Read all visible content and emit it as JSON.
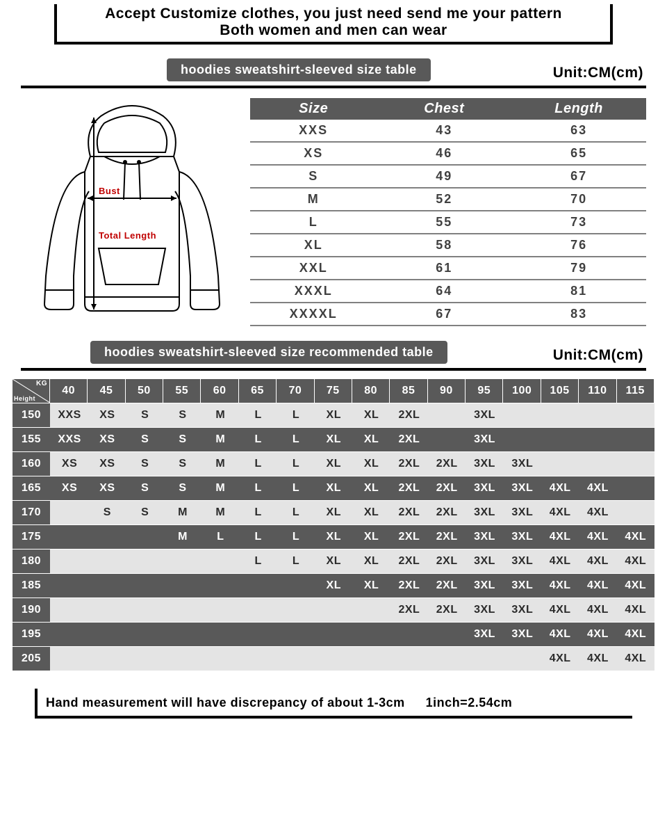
{
  "header": {
    "line1": "Accept Customize clothes, you just need send me your pattern",
    "line2": "Both women and men can wear"
  },
  "section1": {
    "pill": "hoodies sweatshirt-sleeved size  table",
    "unit": "Unit:CM(cm)",
    "diagram_labels": {
      "bust": "Bust",
      "total_length": "Total Length"
    },
    "table": {
      "columns": [
        "Size",
        "Chest",
        "Length"
      ],
      "rows": [
        [
          "XXS",
          "43",
          "63"
        ],
        [
          "XS",
          "46",
          "65"
        ],
        [
          "S",
          "49",
          "67"
        ],
        [
          "M",
          "52",
          "70"
        ],
        [
          "L",
          "55",
          "73"
        ],
        [
          "XL",
          "58",
          "76"
        ],
        [
          "XXL",
          "61",
          "79"
        ],
        [
          "XXXL",
          "64",
          "81"
        ],
        [
          "XXXXL",
          "67",
          "83"
        ]
      ]
    }
  },
  "section2": {
    "pill": "hoodies sweatshirt-sleeved size recommended table",
    "unit": "Unit:CM(cm)",
    "corner": {
      "kg": "KG",
      "height": "Height"
    },
    "kg_headers": [
      "40",
      "45",
      "50",
      "55",
      "60",
      "65",
      "70",
      "75",
      "80",
      "85",
      "90",
      "95",
      "100",
      "105",
      "110",
      "115"
    ],
    "rows": [
      {
        "h": "150",
        "dark": false,
        "cells": [
          "XXS",
          "XS",
          "S",
          "S",
          "M",
          "L",
          "L",
          "XL",
          "XL",
          "2XL",
          "",
          "3XL",
          "",
          "",
          "",
          ""
        ]
      },
      {
        "h": "155",
        "dark": true,
        "cells": [
          "XXS",
          "XS",
          "S",
          "S",
          "M",
          "L",
          "L",
          "XL",
          "XL",
          "2XL",
          "",
          "3XL",
          "",
          "",
          "",
          ""
        ]
      },
      {
        "h": "160",
        "dark": false,
        "cells": [
          "XS",
          "XS",
          "S",
          "S",
          "M",
          "L",
          "L",
          "XL",
          "XL",
          "2XL",
          "2XL",
          "3XL",
          "3XL",
          "",
          "",
          ""
        ]
      },
      {
        "h": "165",
        "dark": true,
        "cells": [
          "XS",
          "XS",
          "S",
          "S",
          "M",
          "L",
          "L",
          "XL",
          "XL",
          "2XL",
          "2XL",
          "3XL",
          "3XL",
          "4XL",
          "4XL",
          ""
        ]
      },
      {
        "h": "170",
        "dark": false,
        "cells": [
          "",
          "S",
          "S",
          "M",
          "M",
          "L",
          "L",
          "XL",
          "XL",
          "2XL",
          "2XL",
          "3XL",
          "3XL",
          "4XL",
          "4XL",
          ""
        ]
      },
      {
        "h": "175",
        "dark": true,
        "cells": [
          "",
          "",
          "",
          "M",
          "L",
          "L",
          "L",
          "XL",
          "XL",
          "2XL",
          "2XL",
          "3XL",
          "3XL",
          "4XL",
          "4XL",
          "4XL"
        ]
      },
      {
        "h": "180",
        "dark": false,
        "cells": [
          "",
          "",
          "",
          "",
          "",
          "L",
          "L",
          "XL",
          "XL",
          "2XL",
          "2XL",
          "3XL",
          "3XL",
          "4XL",
          "4XL",
          "4XL"
        ]
      },
      {
        "h": "185",
        "dark": true,
        "cells": [
          "",
          "",
          "",
          "",
          "",
          "",
          "",
          "XL",
          "XL",
          "2XL",
          "2XL",
          "3XL",
          "3XL",
          "4XL",
          "4XL",
          "4XL"
        ]
      },
      {
        "h": "190",
        "dark": false,
        "cells": [
          "",
          "",
          "",
          "",
          "",
          "",
          "",
          "",
          "",
          "2XL",
          "2XL",
          "3XL",
          "3XL",
          "4XL",
          "4XL",
          "4XL"
        ]
      },
      {
        "h": "195",
        "dark": true,
        "cells": [
          "",
          "",
          "",
          "",
          "",
          "",
          "",
          "",
          "",
          "",
          "",
          "3XL",
          "3XL",
          "4XL",
          "4XL",
          "4XL"
        ]
      },
      {
        "h": "205",
        "dark": false,
        "cells": [
          "",
          "",
          "",
          "",
          "",
          "",
          "",
          "",
          "",
          "",
          "",
          "",
          "",
          "4XL",
          "4XL",
          "4XL"
        ]
      }
    ]
  },
  "footer": {
    "note": "Hand measurement will have discrepancy of about  1-3cm",
    "conv": "1inch=2.54cm"
  },
  "colors": {
    "dark": "#595959",
    "light": "#e4e4e4",
    "label_red": "#c00000"
  }
}
